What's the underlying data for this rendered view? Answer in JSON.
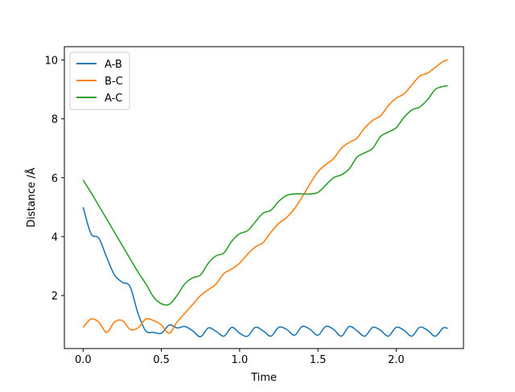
{
  "chart_data": {
    "type": "line",
    "xlabel": "Time",
    "ylabel": "Distance /Å",
    "xlim": [
      -0.12,
      2.43
    ],
    "ylim": [
      0.2,
      10.45
    ],
    "xticks": [
      0.0,
      0.5,
      1.0,
      1.5,
      2.0
    ],
    "xtick_labels": [
      "0.0",
      "0.5",
      "1.0",
      "1.5",
      "2.0"
    ],
    "yticks": [
      2,
      4,
      6,
      8,
      10
    ],
    "ytick_labels": [
      "2",
      "4",
      "6",
      "8",
      "10"
    ],
    "grid": false,
    "legend_position": "top-left",
    "series": [
      {
        "name": "A-B",
        "color": "#1f77b4",
        "x": [
          0.0,
          0.05,
          0.1,
          0.15,
          0.2,
          0.25,
          0.3,
          0.35,
          0.4,
          0.45,
          0.5,
          0.55,
          0.6,
          0.65,
          0.7,
          0.75,
          0.8,
          0.85,
          0.9,
          0.95,
          1.0,
          1.05,
          1.1,
          1.15,
          1.2,
          1.25,
          1.3,
          1.35,
          1.4,
          1.45,
          1.5,
          1.55,
          1.6,
          1.65,
          1.7,
          1.75,
          1.8,
          1.85,
          1.9,
          1.95,
          2.0,
          2.05,
          2.1,
          2.15,
          2.2,
          2.25,
          2.3,
          2.33
        ],
        "y": [
          5.0,
          4.1,
          3.95,
          3.3,
          2.7,
          2.45,
          2.3,
          1.4,
          0.8,
          0.75,
          0.72,
          1.0,
          0.9,
          0.95,
          0.8,
          0.6,
          0.9,
          0.78,
          0.62,
          0.92,
          0.72,
          0.62,
          0.92,
          0.8,
          0.62,
          0.92,
          0.85,
          0.65,
          0.95,
          0.85,
          0.65,
          0.95,
          0.85,
          0.62,
          0.95,
          0.8,
          0.62,
          0.92,
          0.82,
          0.62,
          0.92,
          0.82,
          0.62,
          0.92,
          0.82,
          0.62,
          0.9,
          0.88
        ]
      },
      {
        "name": "B-C",
        "color": "#ff7f0e",
        "x": [
          0.0,
          0.05,
          0.1,
          0.15,
          0.2,
          0.25,
          0.3,
          0.35,
          0.4,
          0.45,
          0.5,
          0.55,
          0.6,
          0.65,
          0.7,
          0.75,
          0.8,
          0.85,
          0.9,
          0.95,
          1.0,
          1.05,
          1.1,
          1.15,
          1.2,
          1.25,
          1.3,
          1.35,
          1.4,
          1.45,
          1.5,
          1.55,
          1.6,
          1.65,
          1.7,
          1.75,
          1.8,
          1.85,
          1.9,
          1.95,
          2.0,
          2.05,
          2.1,
          2.15,
          2.2,
          2.25,
          2.3,
          2.33
        ],
        "y": [
          0.92,
          1.2,
          1.1,
          0.75,
          1.1,
          1.15,
          0.85,
          0.9,
          1.2,
          1.15,
          1.0,
          0.72,
          1.1,
          1.4,
          1.7,
          2.0,
          2.2,
          2.4,
          2.75,
          2.9,
          3.1,
          3.4,
          3.65,
          3.8,
          4.15,
          4.45,
          4.65,
          4.95,
          5.35,
          5.8,
          6.2,
          6.45,
          6.65,
          7.0,
          7.2,
          7.35,
          7.7,
          7.95,
          8.1,
          8.45,
          8.7,
          8.85,
          9.15,
          9.45,
          9.55,
          9.75,
          9.95,
          10.0
        ]
      },
      {
        "name": "A-C",
        "color": "#2ca02c",
        "x": [
          0.0,
          0.05,
          0.1,
          0.15,
          0.2,
          0.25,
          0.3,
          0.35,
          0.4,
          0.45,
          0.5,
          0.55,
          0.6,
          0.65,
          0.7,
          0.75,
          0.8,
          0.85,
          0.9,
          0.95,
          1.0,
          1.05,
          1.1,
          1.15,
          1.2,
          1.25,
          1.3,
          1.35,
          1.4,
          1.45,
          1.5,
          1.55,
          1.6,
          1.65,
          1.7,
          1.75,
          1.8,
          1.85,
          1.9,
          1.95,
          2.0,
          2.05,
          2.1,
          2.15,
          2.2,
          2.25,
          2.3,
          2.33
        ],
        "y": [
          5.92,
          5.5,
          5.05,
          4.6,
          4.15,
          3.7,
          3.25,
          2.8,
          2.4,
          1.95,
          1.72,
          1.7,
          2.0,
          2.4,
          2.6,
          2.7,
          3.1,
          3.35,
          3.45,
          3.85,
          4.1,
          4.2,
          4.5,
          4.8,
          4.9,
          5.2,
          5.4,
          5.45,
          5.45,
          5.45,
          5.5,
          5.75,
          6.0,
          6.1,
          6.3,
          6.7,
          6.85,
          7.0,
          7.4,
          7.55,
          7.7,
          8.05,
          8.3,
          8.4,
          8.65,
          9.0,
          9.1,
          9.12
        ]
      }
    ]
  }
}
